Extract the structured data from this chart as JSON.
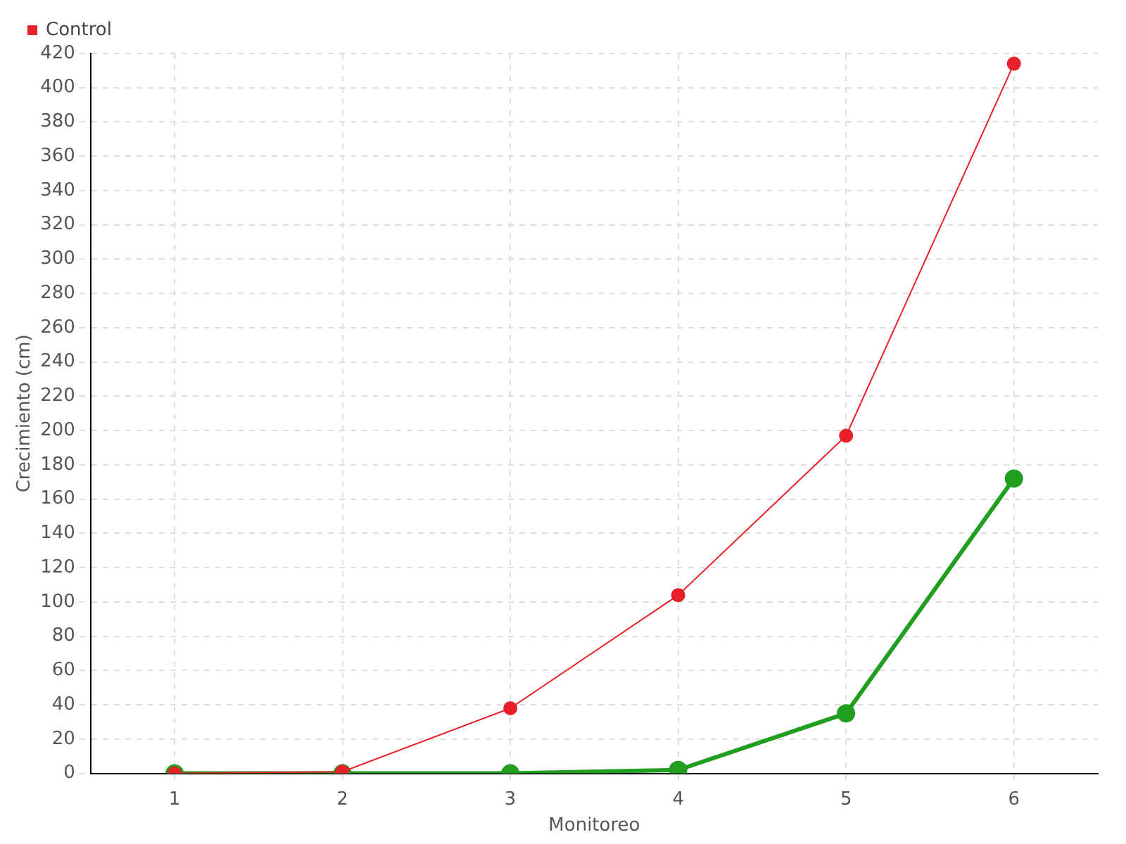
{
  "chart_data": {
    "type": "line",
    "xlabel": "Monitoreo",
    "ylabel": "Crecimiento (cm)",
    "x": [
      1,
      2,
      3,
      4,
      5,
      6
    ],
    "xlim": [
      0.5,
      6.5
    ],
    "xticks": [
      1,
      2,
      3,
      4,
      5,
      6
    ],
    "ylim": [
      0,
      420
    ],
    "yticks": [
      0,
      20,
      40,
      60,
      80,
      100,
      120,
      140,
      160,
      180,
      200,
      220,
      240,
      260,
      280,
      300,
      320,
      340,
      360,
      380,
      400,
      420
    ],
    "series": [
      {
        "color": "#1f9e1f",
        "values": [
          0,
          0,
          0,
          2,
          35,
          172
        ]
      },
      {
        "name": "Control",
        "color": "#e8202a",
        "values": [
          0,
          1,
          38,
          104,
          197,
          414
        ]
      }
    ],
    "grid": true,
    "legend": "top left",
    "marker": "circle",
    "line_style": "solid"
  }
}
